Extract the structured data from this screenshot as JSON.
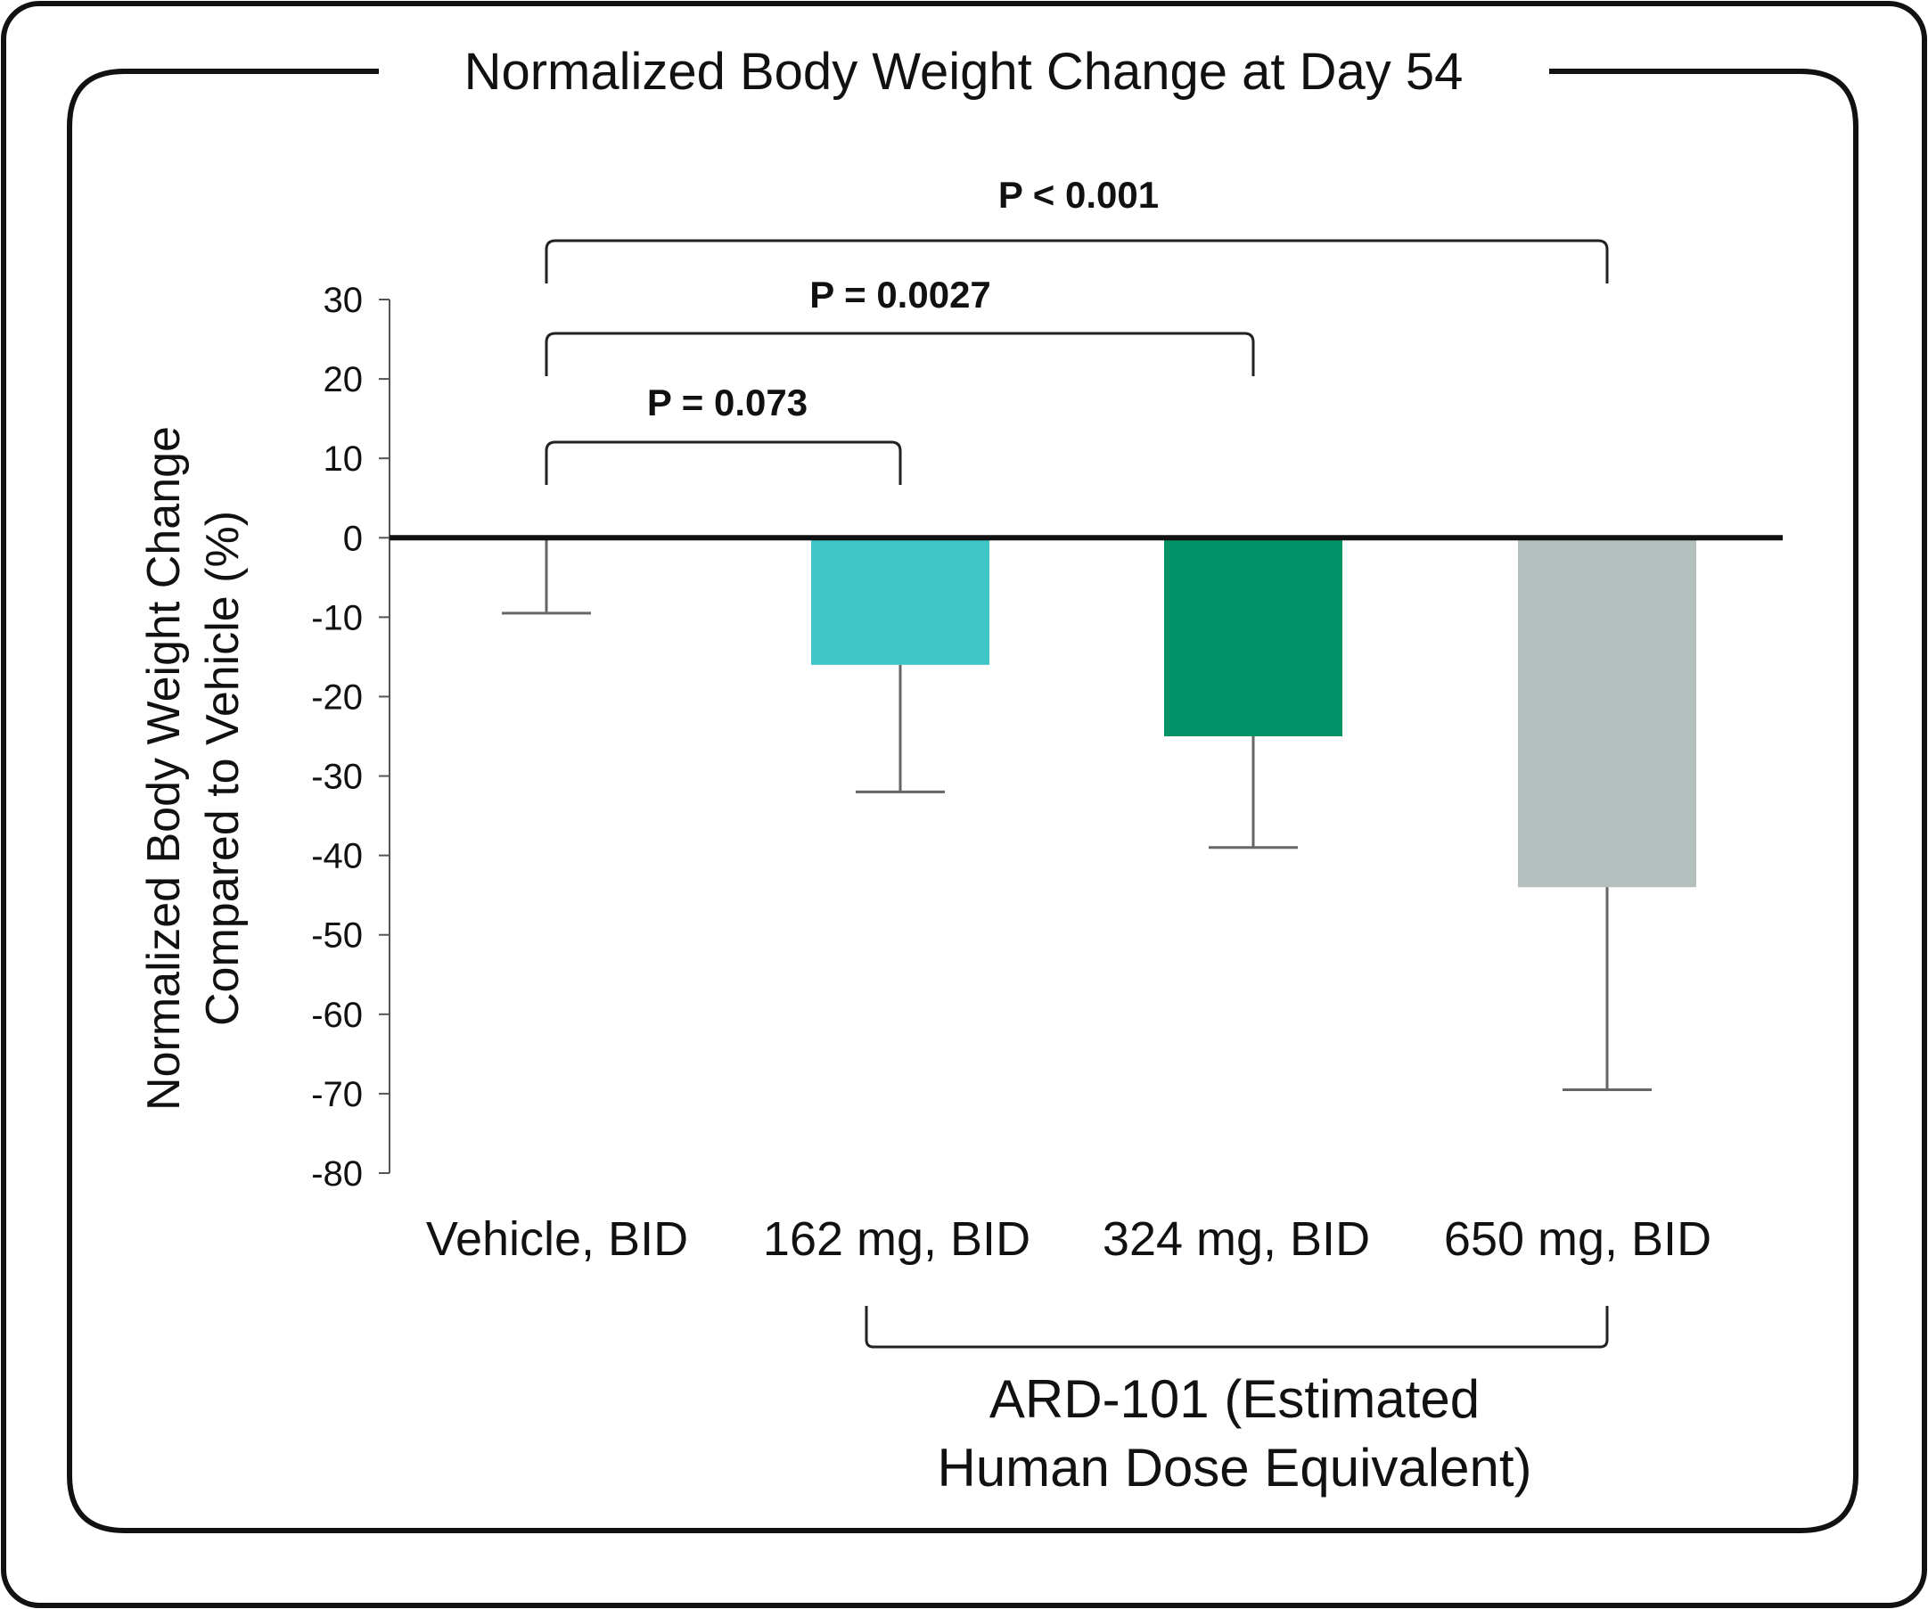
{
  "chart_data": {
    "type": "bar",
    "title": "Normalized Body Weight Change at Day 54",
    "ylabel_lines": [
      "Normalized Body Weight Change",
      "Compared to Vehicle (%)"
    ],
    "xlabel": "",
    "categories": [
      "Vehicle, BID",
      "162 mg, BID",
      "324 mg, BID",
      "650 mg, BID"
    ],
    "values": [
      0,
      -16,
      -25,
      -44
    ],
    "error_lower": [
      -9.5,
      -32,
      -39,
      -69.5
    ],
    "colors": [
      "#ffffff",
      "#3fc5c6",
      "#029268",
      "#b2bfbc"
    ],
    "ylim": [
      -80,
      30
    ],
    "yticks": [
      30,
      20,
      10,
      0,
      -10,
      -20,
      -30,
      -40,
      -50,
      -60,
      -70,
      -80
    ],
    "grid": false,
    "legend": "none",
    "comparisons": [
      {
        "label": "P = 0.073",
        "from": "Vehicle, BID",
        "to": "162 mg, BID"
      },
      {
        "label": "P = 0.0027",
        "from": "Vehicle, BID",
        "to": "324 mg, BID"
      },
      {
        "label": "P < 0.001",
        "from": "Vehicle, BID",
        "to": "650 mg, BID"
      }
    ],
    "group_label_lines": [
      "ARD-101 (Estimated",
      "Human Dose Equivalent)"
    ],
    "group_categories": [
      "162 mg, BID",
      "650 mg, BID"
    ]
  }
}
